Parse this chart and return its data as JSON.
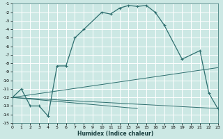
{
  "xlabel": "Humidex (Indice chaleur)",
  "bg_color": "#cce8e4",
  "grid_color": "#ffffff",
  "line_color": "#2d6e6e",
  "xlim": [
    0,
    23
  ],
  "ylim": [
    -15,
    -1
  ],
  "xticks": [
    0,
    1,
    2,
    3,
    4,
    5,
    6,
    7,
    8,
    9,
    10,
    11,
    12,
    13,
    14,
    15,
    16,
    17,
    18,
    19,
    20,
    21,
    22,
    23
  ],
  "yticks": [
    -15,
    -14,
    -13,
    -12,
    -11,
    -10,
    -9,
    -8,
    -7,
    -6,
    -5,
    -4,
    -3,
    -2,
    -1
  ],
  "curve_x": [
    0,
    1,
    2,
    3,
    4,
    5,
    6,
    7,
    8,
    10,
    11,
    12,
    13,
    14,
    15,
    16,
    17,
    19,
    21,
    22,
    23
  ],
  "curve_y": [
    -12,
    -11,
    -13,
    -13,
    -14.2,
    -8.3,
    -8.3,
    -5.0,
    -4.0,
    -2.0,
    -2.2,
    -1.5,
    -1.2,
    -1.3,
    -1.2,
    -2.0,
    -3.5,
    -7.5,
    -6.5,
    -11.5,
    -13.3
  ],
  "line1_x": [
    0,
    23
  ],
  "line1_y": [
    -12,
    -13.3
  ],
  "line2_x": [
    0,
    23
  ],
  "line2_y": [
    -12,
    -8.5
  ],
  "line3_x": [
    0,
    14
  ],
  "line3_y": [
    -12,
    -13.3
  ]
}
